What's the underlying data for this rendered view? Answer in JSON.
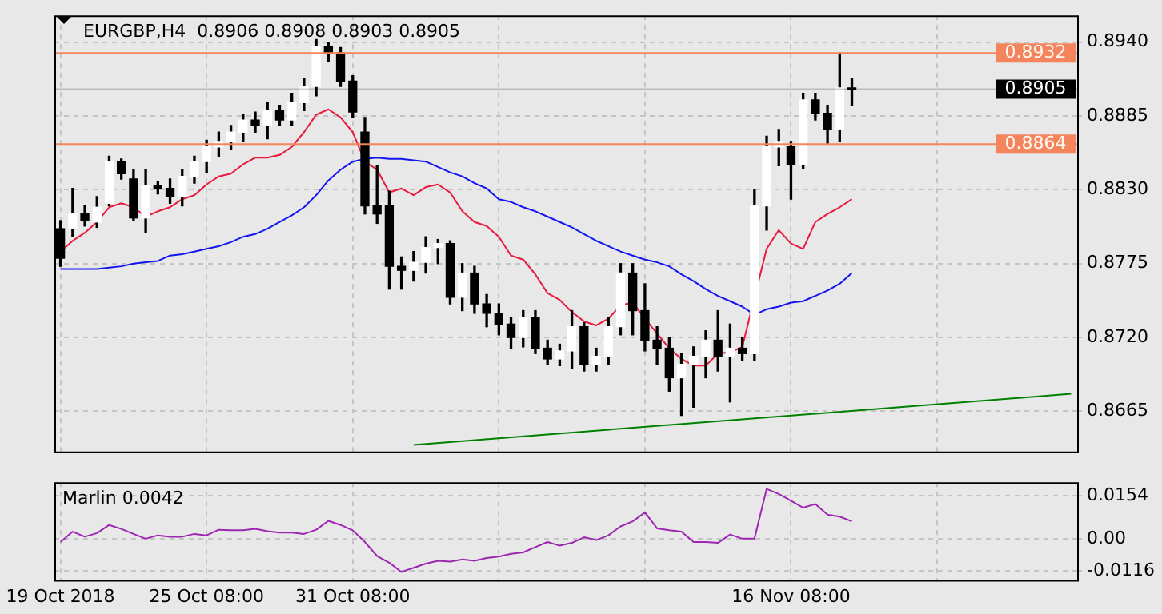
{
  "chart_data": [
    {
      "type": "candlestick",
      "title": "EURGBP,H4  0.8906 0.8908 0.8903 0.8905",
      "categories": [
        null,
        null,
        null,
        null,
        null,
        null,
        null,
        null,
        null,
        null,
        null,
        null,
        null,
        null,
        null,
        null,
        null,
        null,
        null,
        null,
        null,
        null,
        null,
        null,
        null,
        null,
        null,
        null,
        null,
        null,
        null,
        null,
        null,
        null,
        null,
        null,
        null,
        null,
        null,
        null,
        null,
        null,
        null,
        null,
        null,
        null,
        null,
        null,
        null,
        null,
        null,
        null,
        null,
        null,
        null,
        null,
        null,
        null,
        null,
        null,
        null,
        null,
        null,
        null,
        null,
        null,
        null,
        null,
        null,
        null,
        null,
        null,
        null,
        null,
        null,
        null,
        null,
        null,
        null,
        null,
        null,
        null,
        null,
        null
      ],
      "ohlc": [
        [
          0.8801,
          0.8807,
          0.8773,
          0.8779
        ],
        [
          0.8801,
          0.8831,
          0.8795,
          0.8812
        ],
        [
          0.8812,
          0.8818,
          0.8803,
          0.8807
        ],
        [
          0.8806,
          0.8825,
          0.8802,
          0.8817
        ],
        [
          0.882,
          0.8855,
          0.8818,
          0.8851
        ],
        [
          0.8851,
          0.8853,
          0.8838,
          0.8842
        ],
        [
          0.8838,
          0.8845,
          0.8807,
          0.8809
        ],
        [
          0.8809,
          0.8845,
          0.8798,
          0.8833
        ],
        [
          0.8833,
          0.8836,
          0.8827,
          0.8831
        ],
        [
          0.8831,
          0.8838,
          0.882,
          0.8825
        ],
        [
          0.8825,
          0.8845,
          0.8818,
          0.884
        ],
        [
          0.884,
          0.8855,
          0.8835,
          0.8851
        ],
        [
          0.8851,
          0.8867,
          0.8843,
          0.8862
        ],
        [
          0.8862,
          0.8873,
          0.8855,
          0.8866
        ],
        [
          0.8866,
          0.8878,
          0.886,
          0.8873
        ],
        [
          0.8873,
          0.8886,
          0.8866,
          0.8882
        ],
        [
          0.8882,
          0.8888,
          0.8873,
          0.8878
        ],
        [
          0.8878,
          0.8895,
          0.8868,
          0.8889
        ],
        [
          0.8889,
          0.8893,
          0.8878,
          0.8882
        ],
        [
          0.8882,
          0.8902,
          0.8878,
          0.8895
        ],
        [
          0.8895,
          0.8913,
          0.8889,
          0.8907
        ],
        [
          0.8907,
          0.8942,
          0.89,
          0.8937
        ],
        [
          0.8937,
          0.894,
          0.8926,
          0.8932
        ],
        [
          0.8932,
          0.8936,
          0.8907,
          0.8911
        ],
        [
          0.8911,
          0.8915,
          0.8884,
          0.8888
        ],
        [
          0.8873,
          0.8884,
          0.8812,
          0.8818
        ],
        [
          0.8818,
          0.8848,
          0.8805,
          0.8812
        ],
        [
          0.8818,
          0.8829,
          0.8756,
          0.8773
        ],
        [
          0.8773,
          0.878,
          0.8756,
          0.877
        ],
        [
          0.877,
          0.8784,
          0.8762,
          0.8776
        ],
        [
          0.8776,
          0.8795,
          0.8768,
          0.8787
        ],
        [
          0.8787,
          0.8793,
          0.8775,
          0.879
        ],
        [
          0.879,
          0.8792,
          0.8745,
          0.875
        ],
        [
          0.875,
          0.8775,
          0.874,
          0.8768
        ],
        [
          0.8768,
          0.8773,
          0.8738,
          0.8745
        ],
        [
          0.8745,
          0.8752,
          0.8728,
          0.8738
        ],
        [
          0.8738,
          0.8745,
          0.8722,
          0.873
        ],
        [
          0.873,
          0.8735,
          0.8712,
          0.872
        ],
        [
          0.872,
          0.874,
          0.8713,
          0.8735
        ],
        [
          0.8735,
          0.874,
          0.8708,
          0.8712
        ],
        [
          0.8712,
          0.8718,
          0.87,
          0.8704
        ],
        [
          0.8704,
          0.8715,
          0.8699,
          0.871
        ],
        [
          0.871,
          0.874,
          0.8697,
          0.8728
        ],
        [
          0.8728,
          0.8731,
          0.8695,
          0.87
        ],
        [
          0.87,
          0.8712,
          0.8695,
          0.8706
        ],
        [
          0.8706,
          0.8735,
          0.87,
          0.8728
        ],
        [
          0.8728,
          0.8775,
          0.8722,
          0.8768
        ],
        [
          0.8768,
          0.8775,
          0.8722,
          0.874
        ],
        [
          0.874,
          0.876,
          0.871,
          0.8718
        ],
        [
          0.8718,
          0.8728,
          0.87,
          0.8712
        ],
        [
          0.8712,
          0.872,
          0.868,
          0.869
        ],
        [
          0.869,
          0.8708,
          0.8662,
          0.87
        ],
        [
          0.87,
          0.8713,
          0.8668,
          0.8706
        ],
        [
          0.8706,
          0.8725,
          0.869,
          0.8718
        ],
        [
          0.8718,
          0.874,
          0.8695,
          0.8706
        ],
        [
          0.8706,
          0.873,
          0.8672,
          0.8712
        ],
        [
          0.8712,
          0.872,
          0.8703,
          0.8708
        ],
        [
          0.8708,
          0.883,
          0.8703,
          0.8818
        ],
        [
          0.8818,
          0.887,
          0.88,
          0.8862
        ],
        [
          0.8862,
          0.8875,
          0.8848,
          0.8866
        ],
        [
          0.8862,
          0.8866,
          0.8823,
          0.8849
        ],
        [
          0.8849,
          0.8902,
          0.8846,
          0.8897
        ],
        [
          0.8897,
          0.8902,
          0.8882,
          0.8887
        ],
        [
          0.8887,
          0.8893,
          0.8864,
          0.8875
        ],
        [
          0.8875,
          0.8932,
          0.8866,
          0.8906
        ],
        [
          0.8906,
          0.8913,
          0.8893,
          0.8905
        ],
        null,
        null,
        null,
        null,
        null,
        null,
        null,
        null,
        null,
        null,
        null,
        null,
        null,
        null,
        null,
        null,
        null,
        null
      ],
      "series": [
        {
          "type": "line",
          "color": "#e8193c",
          "values": [
            0.8784,
            0.8792,
            0.8798,
            0.8806,
            0.8817,
            0.882,
            0.8817,
            0.881,
            0.8814,
            0.8817,
            0.8823,
            0.8826,
            0.8834,
            0.884,
            0.8842,
            0.8849,
            0.8854,
            0.8854,
            0.8856,
            0.8862,
            0.8873,
            0.8886,
            0.889,
            0.8884,
            0.8873,
            0.8851,
            0.8845,
            0.8828,
            0.8831,
            0.8826,
            0.8832,
            0.8834,
            0.8828,
            0.8814,
            0.8806,
            0.8803,
            0.8795,
            0.8781,
            0.8778,
            0.8767,
            0.8753,
            0.8748,
            0.8739,
            0.8732,
            0.8729,
            0.8734,
            0.8744,
            0.8746,
            0.8734,
            0.8723,
            0.8712,
            0.8704,
            0.8699,
            0.8699,
            0.8708,
            0.8709,
            0.8713,
            null,
            0.8786,
            0.88,
            0.879,
            0.8786,
            0.8806,
            0.8812,
            0.8817,
            0.8823,
            null,
            null,
            null,
            null,
            null,
            null,
            null,
            null,
            null,
            null,
            null,
            null,
            null,
            null,
            null,
            null,
            null,
            null
          ]
        },
        {
          "type": "line",
          "color": "#1414f0",
          "values": [
            0.8771,
            0.8771,
            0.8771,
            0.8771,
            0.8772,
            0.8773,
            0.8775,
            0.8776,
            0.8777,
            0.8781,
            0.8782,
            0.8784,
            0.8786,
            0.8788,
            0.8791,
            0.8795,
            0.8797,
            0.8801,
            0.8806,
            0.8811,
            0.8817,
            0.8826,
            0.8837,
            0.8845,
            0.8851,
            0.8853,
            0.8854,
            0.8853,
            0.8853,
            0.8852,
            0.8851,
            0.8847,
            0.8843,
            0.884,
            0.8835,
            0.8831,
            0.8823,
            0.8821,
            0.8817,
            0.8814,
            0.881,
            0.8806,
            0.8802,
            0.8797,
            0.8792,
            0.8788,
            0.8784,
            0.8781,
            0.8778,
            0.8776,
            0.8773,
            0.8767,
            0.8762,
            0.8756,
            0.8751,
            0.8747,
            0.8743,
            0.8737,
            0.8741,
            0.8743,
            0.8746,
            0.8747,
            0.8751,
            0.8755,
            0.876,
            0.8768,
            null,
            null,
            null,
            null,
            null,
            null,
            null,
            null,
            null,
            null,
            null,
            null,
            null,
            null,
            null,
            null,
            null,
            null
          ]
        },
        {
          "type": "line",
          "color": "#008000",
          "values": [
            null,
            null,
            null,
            null,
            null,
            null,
            null,
            null,
            null,
            null,
            null,
            null,
            null,
            null,
            null,
            null,
            null,
            null,
            null,
            null,
            null,
            null,
            null,
            null,
            null,
            null,
            null,
            null,
            null,
            0.864,
            null,
            null,
            null,
            null,
            null,
            null,
            null,
            null,
            null,
            null,
            null,
            null,
            null,
            null,
            null,
            null,
            null,
            null,
            null,
            null,
            null,
            null,
            null,
            null,
            null,
            null,
            null,
            null,
            null,
            null,
            null,
            null,
            null,
            null,
            null,
            null,
            null,
            null,
            null,
            null,
            null,
            null,
            null,
            null,
            null,
            null,
            null,
            null,
            null,
            null,
            null,
            null,
            null,
            0.8678
          ]
        }
      ],
      "ylim": [
        0.8635,
        0.896
      ],
      "yticks": [
        {
          "value": 0.8665,
          "label": "0.8665"
        },
        {
          "value": 0.872,
          "label": "0.8720"
        },
        {
          "value": 0.8775,
          "label": "0.8775"
        },
        {
          "value": 0.883,
          "label": "0.8830"
        },
        {
          "value": 0.8885,
          "label": "0.8885"
        },
        {
          "value": 0.894,
          "label": "0.8940"
        }
      ],
      "ref_lines": [
        {
          "axis": "y",
          "value": 0.8932,
          "label": "0.8932",
          "color": "#f4845c"
        },
        {
          "axis": "y",
          "value": 0.8864,
          "label": "0.8864",
          "color": "#f4845c"
        },
        {
          "axis": "y",
          "value": 0.8905,
          "label": "0.8905",
          "color": "#000000"
        }
      ],
      "grid": true,
      "tick_labels": "y",
      "marker": "none"
    },
    {
      "type": "line",
      "title": "Marlin 0.0042",
      "categories": [
        "19 Oct 2018",
        null,
        null,
        null,
        null,
        null,
        null,
        null,
        null,
        null,
        null,
        null,
        "25 Oct 08:00",
        null,
        null,
        null,
        null,
        null,
        null,
        null,
        null,
        null,
        null,
        null,
        "31 Oct 08:00",
        null,
        null,
        null,
        null,
        null,
        null,
        null,
        null,
        null,
        null,
        null,
        null,
        null,
        null,
        null,
        null,
        null,
        null,
        null,
        null,
        null,
        null,
        null,
        null,
        null,
        null,
        null,
        null,
        null,
        null,
        null,
        null,
        null,
        null,
        null,
        "16 Nov 08:00",
        null,
        null,
        null,
        null,
        null,
        null,
        null,
        null,
        null,
        null,
        null,
        null,
        null,
        null,
        null,
        null,
        null,
        null,
        null,
        null,
        null,
        null,
        null
      ],
      "series": [
        {
          "color": "#9c27b0",
          "values": [
            -0.0012,
            0.0025,
            0.0007,
            0.002,
            0.0049,
            0.0035,
            0.0017,
            0,
            0.0012,
            0.0007,
            0.0007,
            0.0017,
            0.0012,
            0.0032,
            0.003,
            0.003,
            0.0035,
            0.0027,
            0.0022,
            0.0022,
            0.0017,
            0.0032,
            0.0064,
            0.0049,
            0.003,
            -0.0012,
            -0.0062,
            -0.0086,
            -0.0119,
            -0.0104,
            -0.0089,
            -0.0079,
            -0.0082,
            -0.0074,
            -0.0079,
            -0.0069,
            -0.0064,
            -0.0054,
            -0.0049,
            -0.003,
            -0.0012,
            -0.0025,
            -0.0015,
            0.0005,
            -0.0005,
            0.0012,
            0.0044,
            0.0062,
            0.0094,
            0.0037,
            0.003,
            0.0025,
            -0.0012,
            -0.0012,
            -0.0015,
            0.0015,
            0,
            0,
            0.0178,
            0.016,
            0.0136,
            0.0111,
            0.0124,
            0.0086,
            0.0079,
            0.0062,
            null,
            null,
            null,
            null,
            null,
            null,
            null,
            null,
            null,
            null,
            null,
            null,
            null,
            null,
            null,
            null,
            null,
            null
          ]
        }
      ],
      "ylim": [
        -0.0148,
        0.0202
      ],
      "yticks": [
        {
          "value": 0.0154,
          "label": "0.0154"
        },
        {
          "value": 0,
          "label": "0.00"
        },
        {
          "value": -0.0116,
          "label": "-0.0116"
        }
      ],
      "grid": true,
      "marker": "none"
    }
  ]
}
